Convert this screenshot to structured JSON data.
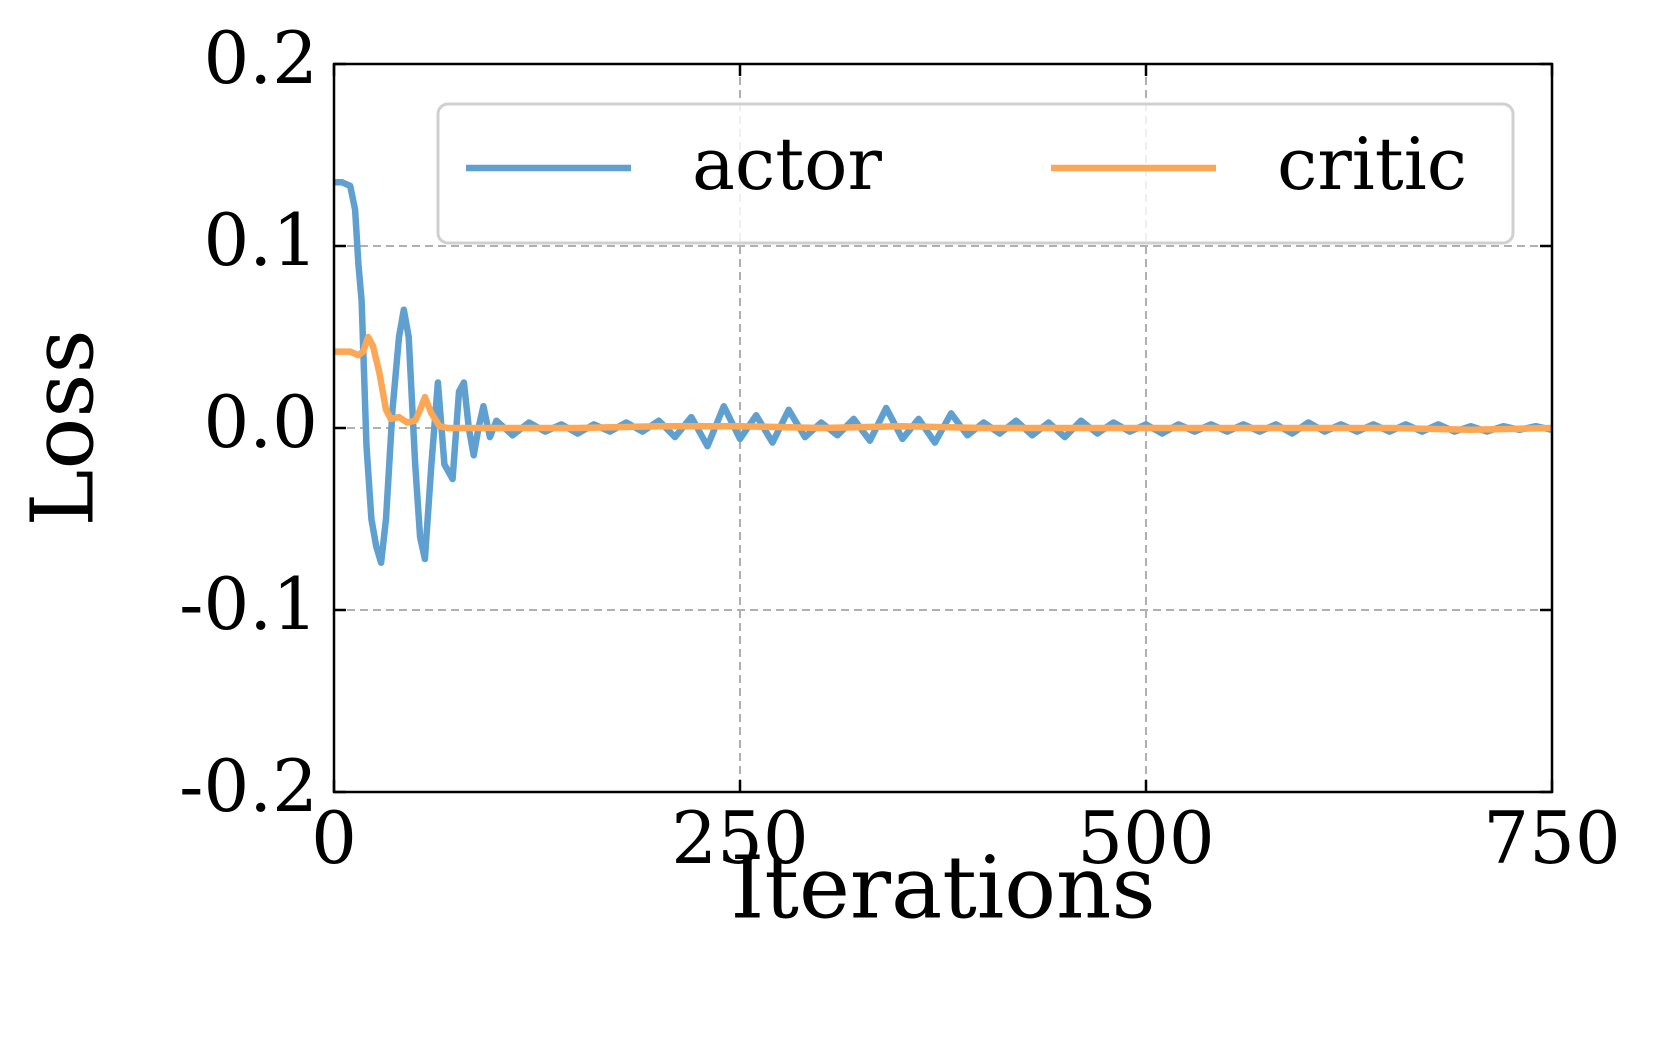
{
  "chart_data": {
    "type": "line",
    "xlabel": "Iterations",
    "ylabel": "Loss",
    "xlim": [
      0,
      750
    ],
    "ylim": [
      -0.2,
      0.2
    ],
    "xticks": [
      0,
      250,
      500,
      750
    ],
    "yticks": [
      0.2,
      0.1,
      {
        "value": 0,
        "label": "0.0"
      },
      -0.1,
      -0.2
    ],
    "grid": true,
    "legend": "upper center",
    "series": [
      {
        "name": "actor",
        "color": "#5fa0d0",
        "x": [
          0,
          5,
          10,
          13,
          15,
          17,
          20,
          23,
          26,
          29,
          32,
          36,
          40,
          43,
          46,
          50,
          53,
          56,
          60,
          64,
          68,
          73,
          77,
          80,
          83,
          86,
          89,
          92,
          96,
          100,
          110,
          120,
          130,
          140,
          150,
          160,
          170,
          180,
          190,
          200,
          210,
          220,
          230,
          240,
          250,
          260,
          270,
          280,
          290,
          300,
          310,
          320,
          330,
          340,
          350,
          360,
          370,
          380,
          390,
          400,
          410,
          420,
          430,
          440,
          450,
          460,
          470,
          480,
          490,
          500,
          510,
          520,
          530,
          540,
          550,
          560,
          570,
          580,
          590,
          600,
          610,
          620,
          630,
          640,
          650,
          660,
          670,
          680,
          690,
          700,
          710,
          720,
          730,
          740,
          750
        ],
        "values": [
          0.135,
          0.135,
          0.133,
          0.12,
          0.09,
          0.07,
          -0.01,
          -0.05,
          -0.065,
          -0.074,
          -0.05,
          0.01,
          0.05,
          0.065,
          0.05,
          -0.02,
          -0.06,
          -0.072,
          -0.02,
          0.025,
          -0.02,
          -0.028,
          0.02,
          0.025,
          0.0,
          -0.015,
          0.0,
          0.012,
          -0.005,
          0.004,
          -0.004,
          0.003,
          -0.002,
          0.002,
          -0.003,
          0.002,
          -0.002,
          0.003,
          -0.002,
          0.004,
          -0.005,
          0.006,
          -0.01,
          0.012,
          -0.006,
          0.007,
          -0.008,
          0.01,
          -0.005,
          0.003,
          -0.004,
          0.005,
          -0.007,
          0.011,
          -0.006,
          0.005,
          -0.008,
          0.008,
          -0.004,
          0.003,
          -0.003,
          0.004,
          -0.004,
          0.003,
          -0.005,
          0.004,
          -0.003,
          0.003,
          -0.002,
          0.002,
          -0.003,
          0.002,
          -0.002,
          0.002,
          -0.002,
          0.002,
          -0.002,
          0.002,
          -0.003,
          0.003,
          -0.002,
          0.002,
          -0.002,
          0.002,
          -0.002,
          0.002,
          -0.002,
          0.002,
          -0.002,
          0.001,
          -0.002,
          0.001,
          -0.001,
          0.001,
          -0.001
        ]
      },
      {
        "name": "critic",
        "color": "#fba755",
        "x": [
          0,
          10,
          15,
          18,
          21,
          24,
          28,
          32,
          35,
          40,
          45,
          50,
          53,
          56,
          60,
          65,
          70,
          80,
          100,
          150,
          200,
          250,
          300,
          350,
          400,
          450,
          500,
          550,
          600,
          650,
          700,
          750
        ],
        "values": [
          0.042,
          0.042,
          0.04,
          0.042,
          0.05,
          0.045,
          0.03,
          0.01,
          0.005,
          0.006,
          0.003,
          0.004,
          0.01,
          0.017,
          0.008,
          0.001,
          0.0,
          0.0,
          0.0,
          0.0,
          0.001,
          0.001,
          0.0,
          0.001,
          0.0,
          0.0,
          0.0,
          0.0,
          0.0,
          0.0,
          -0.001,
          0.0
        ]
      }
    ]
  }
}
